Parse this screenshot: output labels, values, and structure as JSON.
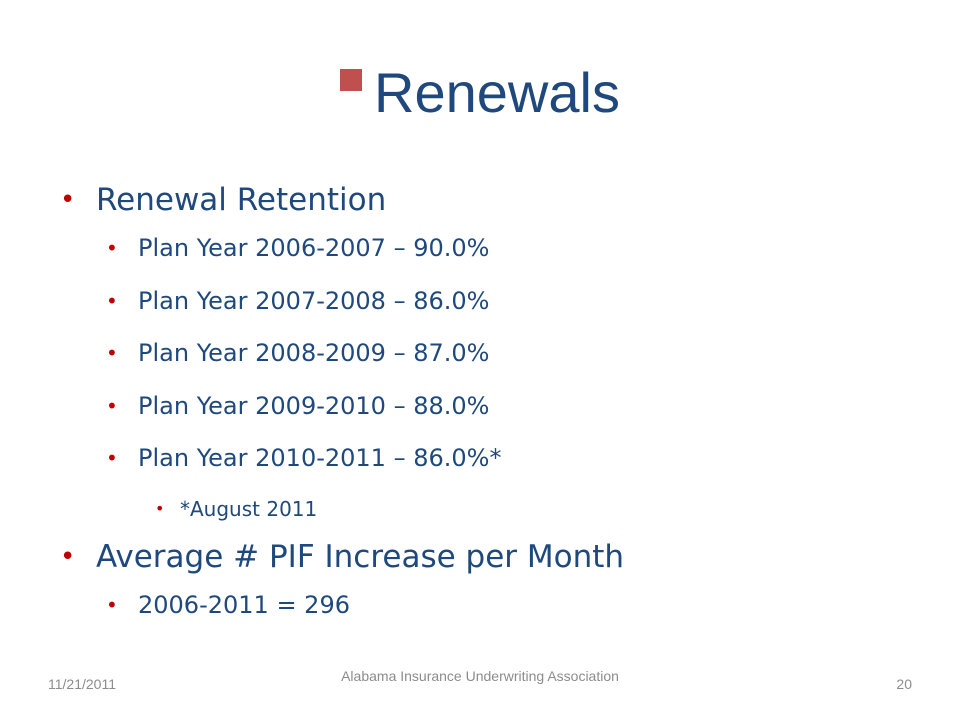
{
  "slide": {
    "title": "Renewals",
    "title_color": "#1f497d",
    "marker_color": "#c0504d",
    "bullet_color": "#c00000",
    "bullet_glyph": "•",
    "items": [
      {
        "level": 1,
        "text": "Renewal Retention"
      },
      {
        "level": 2,
        "text": "Plan Year 2006-2007 – 90.0%"
      },
      {
        "level": 2,
        "text": "Plan Year 2007-2008 – 86.0%"
      },
      {
        "level": 2,
        "text": "Plan Year 2008-2009 – 87.0%"
      },
      {
        "level": 2,
        "text": "Plan Year 2009-2010 – 88.0%"
      },
      {
        "level": 2,
        "text": "Plan Year 2010-2011 – 86.0%*"
      },
      {
        "level": 3,
        "text": "*August 2011"
      },
      {
        "level": 1,
        "text": "Average # PIF Increase per Month"
      },
      {
        "level": 2,
        "text": "2006-2011 = 296"
      }
    ]
  },
  "footer": {
    "date": "11/21/2011",
    "organization": "Alabama Insurance Underwriting Association",
    "page_number": "20"
  }
}
